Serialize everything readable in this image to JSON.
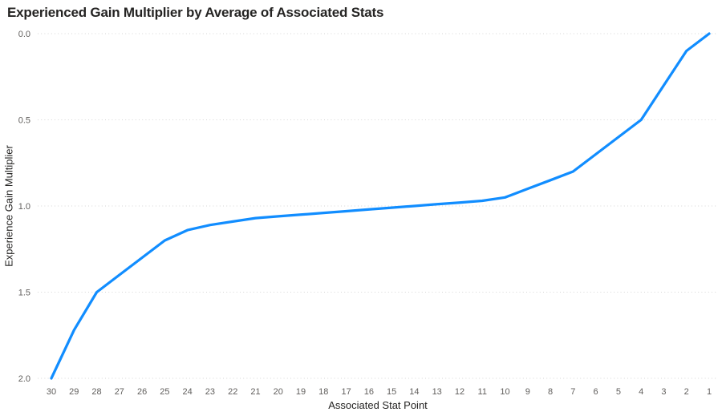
{
  "title": "Experienced Gain Multiplier by Average of Associated Stats",
  "colors": {
    "line": "#118DFF",
    "gridline": "#D6D6D6",
    "tick_label": "#605E5C",
    "title_text": "#252423",
    "background": "#FFFFFF"
  },
  "chart_data": {
    "type": "line",
    "title": "Experienced Gain Multiplier by Average of Associated Stats",
    "xlabel": "Associated Stat Point",
    "ylabel": "Experience Gain Multiplier",
    "categories": [
      30,
      29,
      28,
      27,
      26,
      25,
      24,
      23,
      22,
      21,
      20,
      19,
      18,
      17,
      16,
      15,
      14,
      13,
      12,
      11,
      10,
      9,
      8,
      7,
      6,
      5,
      4,
      3,
      2,
      1
    ],
    "values": [
      2.0,
      1.72,
      1.5,
      1.4,
      1.3,
      1.2,
      1.14,
      1.11,
      1.09,
      1.07,
      1.06,
      1.05,
      1.04,
      1.03,
      1.02,
      1.01,
      1.0,
      0.99,
      0.98,
      0.97,
      0.95,
      0.9,
      0.85,
      0.8,
      0.7,
      0.6,
      0.5,
      0.3,
      0.1,
      0.0
    ],
    "series_name": "Experience Gain Multiplier",
    "ylim": [
      0.0,
      2.0
    ],
    "y_axis_reversed": true,
    "y_tick_values": [
      0.0,
      0.5,
      1.0,
      1.5,
      2.0
    ],
    "y_tick_labels": [
      "0.0",
      "0.5",
      "1.0",
      "1.5",
      "2.0"
    ],
    "grid": "horizontal-dotted",
    "legend": "none",
    "line_color": "#118DFF"
  }
}
